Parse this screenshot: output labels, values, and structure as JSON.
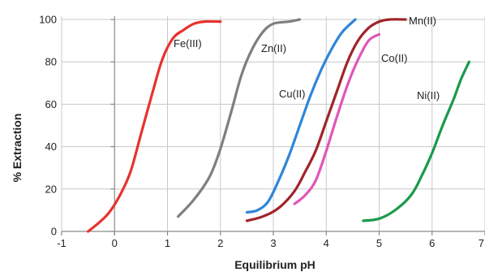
{
  "chart_data": {
    "type": "line",
    "title": "",
    "xlabel": "Equilibrium pH",
    "ylabel": "% Extraction",
    "xlim": [
      -1,
      7
    ],
    "ylim": [
      0,
      100
    ],
    "x_ticks": [
      "-1",
      "0",
      "1",
      "2",
      "3",
      "4",
      "5",
      "6",
      "7"
    ],
    "y_ticks": [
      "0",
      "20",
      "40",
      "60",
      "80",
      "100"
    ],
    "grid": true,
    "legend": "inline labels",
    "series": [
      {
        "name": "Fe(III)",
        "color": "#e8322c",
        "points": [
          [
            -0.5,
            0
          ],
          [
            -0.3,
            4
          ],
          [
            -0.1,
            9
          ],
          [
            0.1,
            17
          ],
          [
            0.3,
            28
          ],
          [
            0.5,
            46
          ],
          [
            0.7,
            64
          ],
          [
            0.9,
            81
          ],
          [
            1.1,
            91
          ],
          [
            1.3,
            95
          ],
          [
            1.5,
            98
          ],
          [
            1.7,
            99
          ],
          [
            2.0,
            99
          ]
        ]
      },
      {
        "name": "Zn(II)",
        "color": "#7f7f7f",
        "points": [
          [
            1.2,
            7
          ],
          [
            1.5,
            15
          ],
          [
            1.8,
            26
          ],
          [
            2.0,
            39
          ],
          [
            2.2,
            56
          ],
          [
            2.4,
            74
          ],
          [
            2.6,
            86
          ],
          [
            2.8,
            94
          ],
          [
            3.0,
            98
          ],
          [
            3.3,
            99
          ],
          [
            3.5,
            100
          ]
        ]
      },
      {
        "name": "Cu(II)",
        "color": "#2e86d8",
        "points": [
          [
            2.5,
            9
          ],
          [
            2.7,
            10
          ],
          [
            2.9,
            14
          ],
          [
            3.1,
            24
          ],
          [
            3.3,
            36
          ],
          [
            3.5,
            50
          ],
          [
            3.7,
            64
          ],
          [
            3.9,
            76
          ],
          [
            4.1,
            86
          ],
          [
            4.3,
            94
          ],
          [
            4.55,
            100
          ]
        ]
      },
      {
        "name": "Mn(II)",
        "color": "#a0242a",
        "points": [
          [
            2.5,
            5
          ],
          [
            2.8,
            7
          ],
          [
            3.1,
            11
          ],
          [
            3.4,
            19
          ],
          [
            3.6,
            28
          ],
          [
            3.8,
            38
          ],
          [
            4.0,
            52
          ],
          [
            4.2,
            66
          ],
          [
            4.4,
            80
          ],
          [
            4.6,
            90
          ],
          [
            4.8,
            96
          ],
          [
            5.0,
            99
          ],
          [
            5.2,
            100
          ],
          [
            5.5,
            100
          ]
        ]
      },
      {
        "name": "Co(II)",
        "color": "#e056b8",
        "points": [
          [
            3.4,
            13
          ],
          [
            3.6,
            17
          ],
          [
            3.8,
            24
          ],
          [
            4.0,
            38
          ],
          [
            4.2,
            54
          ],
          [
            4.4,
            69
          ],
          [
            4.6,
            81
          ],
          [
            4.8,
            90
          ],
          [
            5.0,
            93
          ]
        ]
      },
      {
        "name": "Ni(II)",
        "color": "#1a9a4a",
        "points": [
          [
            4.7,
            5
          ],
          [
            5.0,
            6
          ],
          [
            5.3,
            10
          ],
          [
            5.6,
            17
          ],
          [
            5.8,
            26
          ],
          [
            6.0,
            37
          ],
          [
            6.2,
            50
          ],
          [
            6.4,
            62
          ],
          [
            6.55,
            72
          ],
          [
            6.7,
            80
          ]
        ]
      }
    ]
  }
}
